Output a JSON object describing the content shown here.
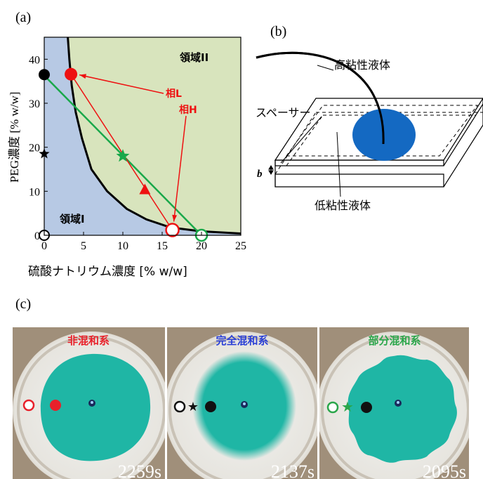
{
  "panel_a": {
    "label": "(a)",
    "ylabel": "PEG濃度 [% w/w]",
    "xlabel": "硫酸ナトリウム濃度 [% w/w]",
    "region1": "領域I",
    "region2": "領域II",
    "phaseL": "相L",
    "phaseH": "相H",
    "xticks": [
      "0",
      "5",
      "10",
      "15",
      "20",
      "25"
    ],
    "yticks": [
      "0",
      "10",
      "20",
      "30",
      "40"
    ],
    "colors": {
      "region1": "#b7c9e4",
      "region2": "#d8e4bd",
      "tie": "#19a84a",
      "red": "#ee1111"
    }
  },
  "chart_data": {
    "type": "scatter",
    "xlabel": "硫酸ナトリウム濃度 [% w/w]",
    "ylabel": "PEG濃度 [% w/w]",
    "xlim": [
      0,
      25
    ],
    "ylim": [
      0,
      45
    ],
    "binodal": [
      [
        3.0,
        45
      ],
      [
        3.2,
        40
      ],
      [
        3.5,
        34
      ],
      [
        4.0,
        28
      ],
      [
        4.8,
        22
      ],
      [
        6.0,
        15
      ],
      [
        8.0,
        10
      ],
      [
        10.5,
        6
      ],
      [
        13.0,
        3.6
      ],
      [
        16.0,
        1.8
      ],
      [
        20.0,
        0.9
      ],
      [
        25.0,
        0.4
      ]
    ],
    "tie_line": [
      [
        0,
        36.3
      ],
      [
        20,
        0
      ]
    ],
    "red_line": [
      [
        3.4,
        36.6
      ],
      [
        16.3,
        1.2
      ]
    ],
    "points": {
      "black_circle": [
        0,
        36.5
      ],
      "black_star": [
        0,
        18.5
      ],
      "white_circle_black": [
        0,
        0
      ],
      "red_circle": [
        3.4,
        36.6
      ],
      "green_star": [
        10,
        18
      ],
      "red_triangle": [
        12.8,
        10.3
      ],
      "white_circle_red": [
        16.3,
        1.2
      ],
      "white_circle_green": [
        20,
        0
      ]
    }
  },
  "panel_b": {
    "label": "(b)",
    "high_viscosity": "高粘性液体",
    "low_viscosity": "低粘性液体",
    "spacer": "スペーサー",
    "b": "b",
    "drop_color": "#1469c2"
  },
  "panel_c": {
    "label": "(c)",
    "photos": [
      {
        "title": "非混和系",
        "title_color": "#e8202a",
        "time": "2259s"
      },
      {
        "title": "完全混和系",
        "title_color": "#2a3fd6",
        "time": "2137s"
      },
      {
        "title": "部分混和系",
        "title_color": "#2aa64a",
        "time": "2095s"
      }
    ],
    "fluid_color": "#1fb6a5"
  }
}
